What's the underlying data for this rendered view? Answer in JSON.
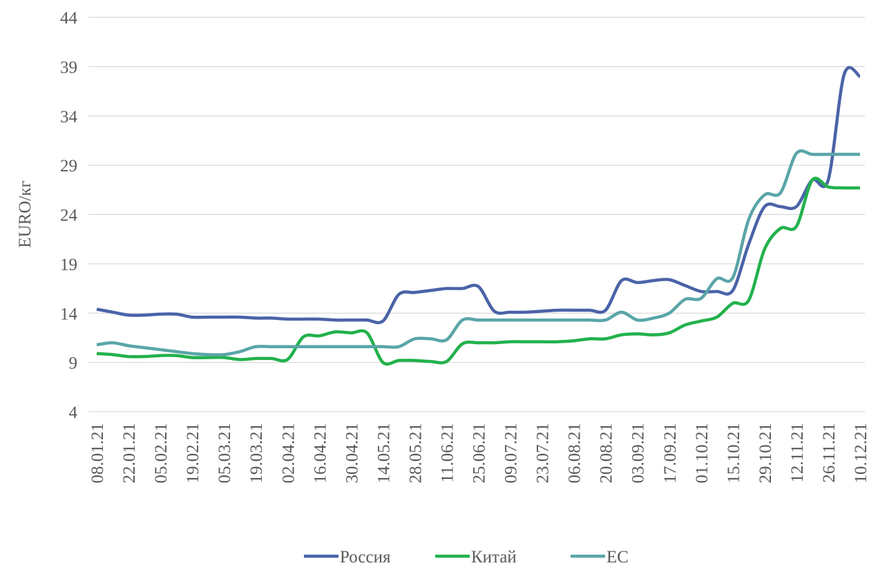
{
  "chart_data": {
    "type": "line",
    "y_label": "EURO/кг",
    "categories": [
      "08.01.21",
      null,
      "22.01.21",
      null,
      "05.02.21",
      null,
      "19.02.21",
      null,
      "05.03.21",
      null,
      "19.03.21",
      null,
      "02.04.21",
      null,
      "16.04.21",
      null,
      "30.04.21",
      null,
      "14.05.21",
      null,
      "28.05.21",
      null,
      "11.06.21",
      null,
      "25.06.21",
      null,
      "09.07.21",
      null,
      "23.07.21",
      null,
      "06.08.21",
      null,
      "20.08.21",
      null,
      "03.09.21",
      null,
      "17.09.21",
      null,
      "01.10.21",
      null,
      "15.10.21",
      null,
      "29.10.21",
      null,
      "12.11.21",
      null,
      "26.11.21",
      null,
      "10.12.21"
    ],
    "series": [
      {
        "name": "Россия",
        "color": "#4a63a8",
        "values": [
          14.4,
          14.1,
          13.8,
          13.8,
          13.9,
          13.9,
          13.6,
          13.6,
          13.6,
          13.6,
          13.5,
          13.5,
          13.4,
          13.4,
          13.4,
          13.3,
          13.3,
          13.3,
          13.2,
          15.9,
          16.1,
          16.3,
          16.5,
          16.5,
          16.7,
          14.2,
          14.1,
          14.1,
          14.2,
          14.3,
          14.3,
          14.3,
          14.3,
          17.3,
          17.1,
          17.3,
          17.4,
          16.8,
          16.2,
          16.2,
          16.3,
          21.0,
          24.8,
          24.8,
          24.8,
          27.5,
          27.5,
          38.2,
          38.0
        ]
      },
      {
        "name": "Китай",
        "color": "#22b14c",
        "values": [
          9.9,
          9.8,
          9.6,
          9.6,
          9.7,
          9.7,
          9.5,
          9.5,
          9.5,
          9.3,
          9.4,
          9.4,
          9.3,
          11.6,
          11.7,
          12.1,
          12.0,
          12.0,
          9.0,
          9.2,
          9.2,
          9.1,
          9.1,
          10.9,
          11.0,
          11.0,
          11.1,
          11.1,
          11.1,
          11.1,
          11.2,
          11.4,
          11.4,
          11.8,
          11.9,
          11.8,
          12.0,
          12.8,
          13.2,
          13.6,
          15.0,
          15.3,
          20.5,
          22.6,
          22.8,
          27.5,
          26.8,
          26.7,
          26.7
        ]
      },
      {
        "name": "ЕС",
        "color": "#5aa5a8",
        "values": [
          10.8,
          11.0,
          10.7,
          10.5,
          10.3,
          10.1,
          9.9,
          9.8,
          9.8,
          10.1,
          10.6,
          10.6,
          10.6,
          10.6,
          10.6,
          10.6,
          10.6,
          10.6,
          10.6,
          10.6,
          11.4,
          11.4,
          11.3,
          13.3,
          13.3,
          13.3,
          13.3,
          13.3,
          13.3,
          13.3,
          13.3,
          13.3,
          13.3,
          14.1,
          13.3,
          13.5,
          14.0,
          15.4,
          15.5,
          17.5,
          17.6,
          23.5,
          26.0,
          26.2,
          30.2,
          30.1,
          30.1,
          30.1,
          30.1
        ]
      }
    ],
    "ylim": [
      4,
      44
    ],
    "yticks": [
      4,
      9,
      14,
      19,
      24,
      29,
      34,
      39,
      44
    ],
    "grid": true
  }
}
